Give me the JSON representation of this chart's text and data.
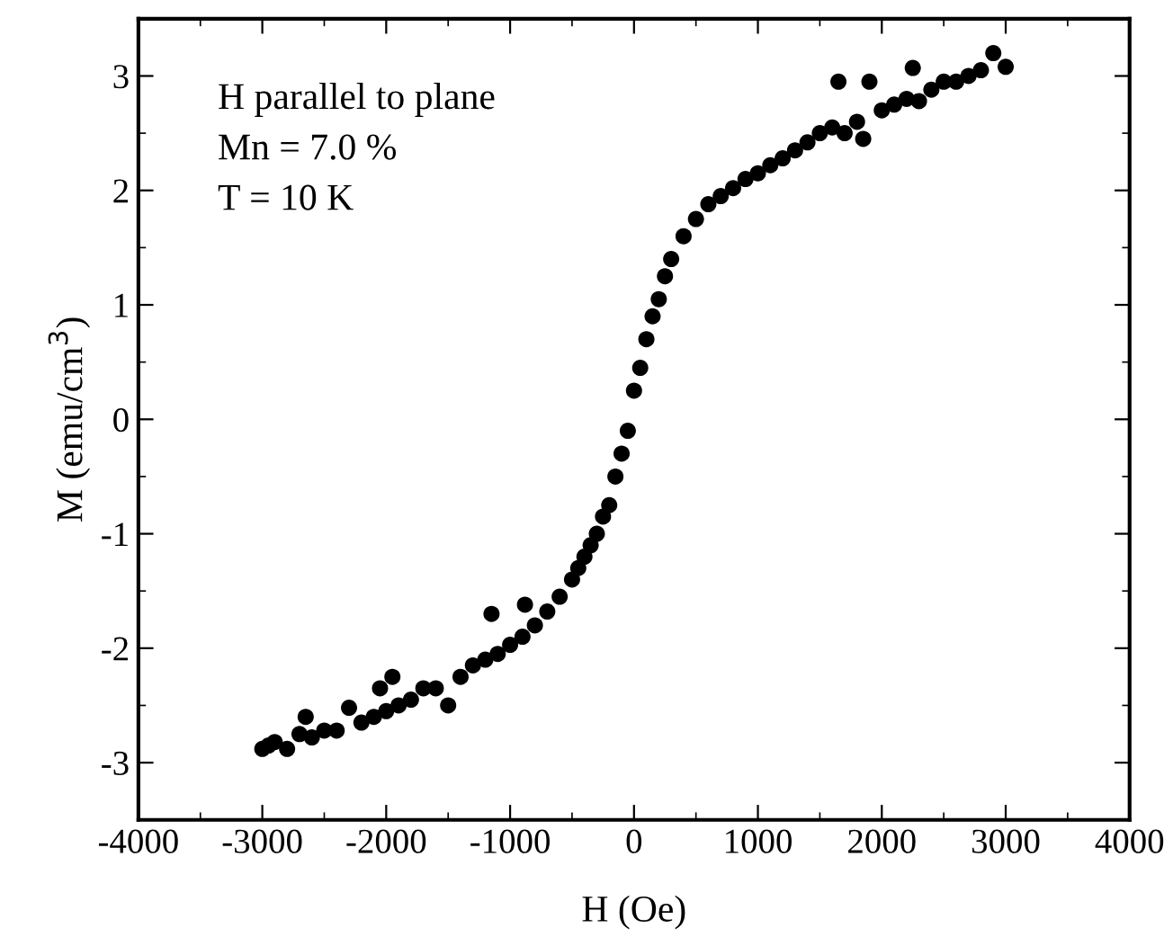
{
  "chart_data": {
    "type": "scatter",
    "xlabel": "H (Oe)",
    "ylabel": "M (emu/cm$^{3}$)",
    "annotations": [
      "H parallel to plane",
      "Mn = 7.0 %",
      "T = 10 K"
    ],
    "marker": "circle",
    "grid": false,
    "legend": false,
    "xlim": [
      -4000,
      4000
    ],
    "xticks": [
      -4000,
      -3000,
      -2000,
      -1000,
      0,
      1000,
      2000,
      3000,
      4000
    ],
    "ylim": [
      -3.5,
      3.5
    ],
    "yticks": [
      -3,
      -2,
      -1,
      0,
      1,
      2,
      3
    ],
    "series": [
      {
        "color": "#000000",
        "x": [
          -3000,
          -2950,
          -2900,
          -2800,
          -2700,
          -2650,
          -2600,
          -2500,
          -2400,
          -2300,
          -2200,
          -2100,
          -2050,
          -2000,
          -1950,
          -1900,
          -1800,
          -1700,
          -1600,
          -1500,
          -1400,
          -1300,
          -1200,
          -1150,
          -1100,
          -1000,
          -900,
          -880,
          -800,
          -700,
          -600,
          -500,
          -450,
          -400,
          -350,
          -300,
          -250,
          -200,
          -150,
          -100,
          -50,
          0,
          50,
          100,
          150,
          200,
          250,
          300,
          400,
          500,
          600,
          700,
          800,
          900,
          1000,
          1100,
          1200,
          1300,
          1400,
          1500,
          1600,
          1650,
          1700,
          1800,
          1850,
          1900,
          2000,
          2100,
          2200,
          2250,
          2300,
          2400,
          2500,
          2600,
          2700,
          2800,
          2900,
          3000
        ],
        "values": [
          -2.88,
          -2.85,
          -2.82,
          -2.88,
          -2.75,
          -2.6,
          -2.78,
          -2.72,
          -2.72,
          -2.52,
          -2.65,
          -2.6,
          -2.35,
          -2.55,
          -2.25,
          -2.5,
          -2.45,
          -2.35,
          -2.35,
          -2.5,
          -2.25,
          -2.15,
          -2.1,
          -1.7,
          -2.05,
          -1.97,
          -1.9,
          -1.62,
          -1.8,
          -1.68,
          -1.55,
          -1.4,
          -1.3,
          -1.2,
          -1.1,
          -1.0,
          -0.85,
          -0.75,
          -0.5,
          -0.3,
          -0.1,
          0.25,
          0.45,
          0.7,
          0.9,
          1.05,
          1.25,
          1.4,
          1.6,
          1.75,
          1.88,
          1.95,
          2.02,
          2.1,
          2.15,
          2.22,
          2.28,
          2.35,
          2.42,
          2.5,
          2.55,
          2.95,
          2.5,
          2.6,
          2.45,
          2.95,
          2.7,
          2.75,
          2.8,
          3.07,
          2.78,
          2.88,
          2.95,
          2.95,
          3.0,
          3.05,
          3.2,
          3.08
        ]
      }
    ]
  }
}
